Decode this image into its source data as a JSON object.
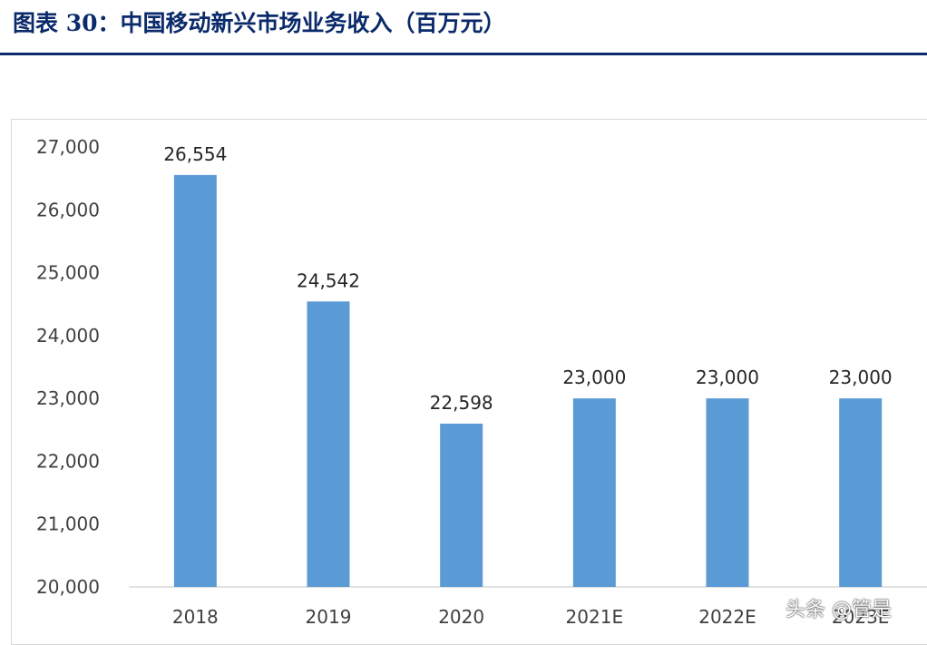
{
  "figure": {
    "title": "图表 30：中国移动新兴市场业务收入（百万元）"
  },
  "chart_data": {
    "type": "bar",
    "title": "",
    "xlabel": "",
    "ylabel": "",
    "categories": [
      "2018",
      "2019",
      "2020",
      "2021E",
      "2022E",
      "2023E"
    ],
    "values": [
      26554,
      24542,
      22598,
      23000,
      23000,
      23000
    ],
    "data_labels": [
      "26,554",
      "24,542",
      "22,598",
      "23,000",
      "23,000",
      "23,000"
    ],
    "ylim": [
      20000,
      27000
    ],
    "yticks": [
      20000,
      21000,
      22000,
      23000,
      24000,
      25000,
      26000,
      27000
    ],
    "ytick_labels": [
      "20,000",
      "21,000",
      "22,000",
      "23,000",
      "24,000",
      "25,000",
      "26,000",
      "27,000"
    ],
    "grid": false,
    "legend": "none",
    "bar_color": "#5b9bd5"
  },
  "watermark": {
    "text": "头条 @管是"
  },
  "colors": {
    "title": "#0a2a6b",
    "rule": "#0a2a6b",
    "bar": "#5b9bd5"
  }
}
